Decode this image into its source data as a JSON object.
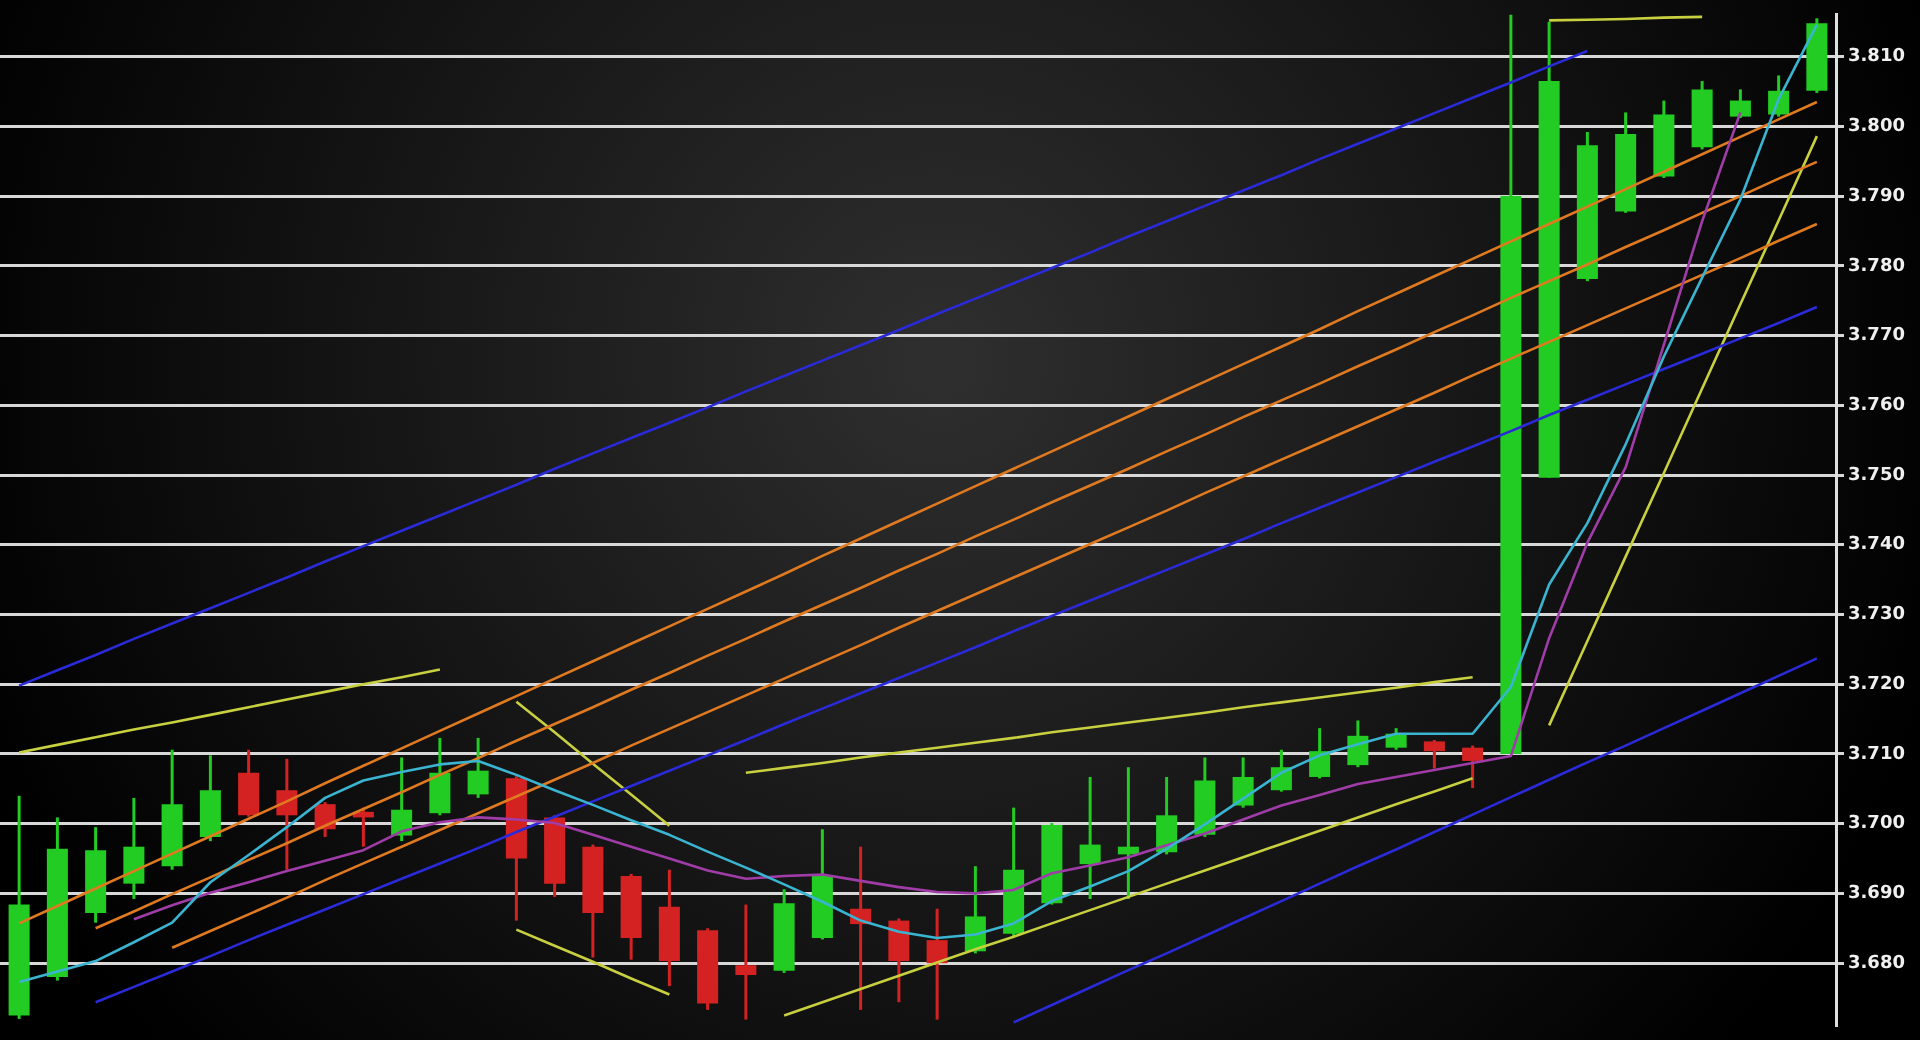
{
  "chart_data": {
    "type": "candlestick",
    "categories": [
      null,
      null,
      null,
      null,
      null,
      null,
      null,
      null,
      null,
      null,
      null,
      null,
      null,
      null,
      null,
      null,
      null,
      null,
      null,
      null,
      null,
      null,
      null,
      null,
      null,
      null,
      null,
      null,
      null,
      null,
      null,
      null,
      null,
      null,
      null,
      null,
      null,
      null,
      null,
      null,
      null,
      null,
      null,
      null,
      null,
      null,
      null,
      null
    ],
    "ohlc": [
      [
        3.6725,
        3.704,
        3.672,
        3.6884
      ],
      [
        3.678,
        3.7009,
        3.6775,
        3.6964
      ],
      [
        3.6872,
        3.6995,
        3.6858,
        3.6962
      ],
      [
        3.6914,
        3.7037,
        3.6892,
        3.6967
      ],
      [
        3.6939,
        3.7106,
        3.6934,
        3.7028
      ],
      [
        3.6981,
        3.7098,
        3.6975,
        3.7048
      ],
      [
        3.7073,
        3.7106,
        3.701,
        3.7012
      ],
      [
        3.7048,
        3.7093,
        3.6934,
        3.7012
      ],
      [
        3.7028,
        3.7031,
        3.6981,
        3.6992
      ],
      [
        3.7017,
        3.7023,
        3.6967,
        3.7009
      ],
      [
        3.6983,
        3.7095,
        3.6975,
        3.702
      ],
      [
        3.7015,
        3.7123,
        3.7012,
        3.7073
      ],
      [
        3.7042,
        3.7123,
        3.7037,
        3.7076
      ],
      [
        3.7065,
        3.7068,
        3.6861,
        3.695
      ],
      [
        3.7009,
        3.7012,
        3.6895,
        3.6914
      ],
      [
        3.6967,
        3.697,
        3.6808,
        3.6872
      ],
      [
        3.6925,
        3.6928,
        3.6805,
        3.6836
      ],
      [
        3.6881,
        3.6934,
        3.6767,
        3.6803
      ],
      [
        3.6847,
        3.685,
        3.6733,
        3.6742
      ],
      [
        3.6797,
        3.6884,
        3.6719,
        3.6783
      ],
      [
        3.6789,
        3.6906,
        3.6786,
        3.6886
      ],
      [
        3.6836,
        3.6992,
        3.6834,
        3.6925
      ],
      [
        3.6878,
        3.6967,
        3.6733,
        3.6856
      ],
      [
        3.6861,
        3.6864,
        3.6744,
        3.6803
      ],
      [
        3.6833,
        3.6878,
        3.6719,
        3.68
      ],
      [
        3.6817,
        3.6939,
        3.6814,
        3.6867
      ],
      [
        3.6842,
        3.7023,
        3.6839,
        3.6934
      ],
      [
        3.6886,
        3.7001,
        3.6884,
        3.6998
      ],
      [
        3.6942,
        3.7067,
        3.6892,
        3.697
      ],
      [
        3.6956,
        3.7081,
        3.6892,
        3.6967
      ],
      [
        3.6959,
        3.7067,
        3.6956,
        3.7012
      ],
      [
        3.6984,
        3.7095,
        3.6981,
        3.7062
      ],
      [
        3.7026,
        3.7095,
        3.7023,
        3.7067
      ],
      [
        3.7048,
        3.7106,
        3.7046,
        3.7081
      ],
      [
        3.7067,
        3.7137,
        3.7065,
        3.7104
      ],
      [
        3.7084,
        3.7148,
        3.7081,
        3.7126
      ],
      [
        3.7109,
        3.7137,
        3.7106,
        3.7129
      ],
      [
        3.7118,
        3.712,
        3.7079,
        3.7104
      ],
      [
        3.7109,
        3.7112,
        3.7051,
        3.709
      ],
      [
        3.71,
        3.816,
        3.71,
        3.79
      ],
      [
        3.7496,
        3.815,
        3.7496,
        3.8065
      ],
      [
        3.7781,
        3.7992,
        3.7778,
        3.7973
      ],
      [
        3.7878,
        3.802,
        3.7876,
        3.7989
      ],
      [
        3.7928,
        3.8037,
        3.7926,
        3.8017
      ],
      [
        3.797,
        3.8065,
        3.7967,
        3.8053
      ],
      [
        3.8014,
        3.8053,
        3.8012,
        3.8037
      ],
      [
        3.8017,
        3.8073,
        3.8014,
        3.8051
      ],
      [
        3.8051,
        3.8155,
        3.8048,
        3.8148
      ]
    ],
    "colors": [
      "#22cc22",
      "#22cc22",
      "#22cc22",
      "#22cc22",
      "#22cc22",
      "#22cc22",
      "#d42222",
      "#d42222",
      "#d42222",
      "#d42222",
      "#22cc22",
      "#22cc22",
      "#22cc22",
      "#d42222",
      "#d42222",
      "#d42222",
      "#d42222",
      "#d42222",
      "#d42222",
      "#d42222",
      "#22cc22",
      "#22cc22",
      "#d42222",
      "#d42222",
      "#d42222",
      "#22cc22",
      "#22cc22",
      "#22cc22",
      "#22cc22",
      "#22cc22",
      "#22cc22",
      "#22cc22",
      "#22cc22",
      "#22cc22",
      "#22cc22",
      "#22cc22",
      "#22cc22",
      "#d42222",
      "#d42222",
      "#22cc22",
      "#22cc22",
      "#22cc22",
      "#22cc22",
      "#22cc22",
      "#22cc22",
      "#22cc22",
      "#22cc22",
      "#22cc22"
    ],
    "series": [
      {
        "type": "line",
        "color": "#3ab4d0",
        "values": [
          3.6773,
          3.6788,
          3.6803,
          3.683,
          3.6858,
          3.6916,
          3.6955,
          3.6995,
          3.7037,
          3.7062,
          3.7074,
          3.7085,
          3.709,
          3.707,
          3.7048,
          3.7027,
          3.7005,
          3.6984,
          3.696,
          3.6937,
          3.6913,
          3.6888,
          3.6861,
          3.6845,
          3.6836,
          3.6841,
          3.6857,
          3.6889,
          3.691,
          3.6932,
          3.6964,
          3.6999,
          3.7036,
          3.7073,
          3.7098,
          3.7114,
          3.7129,
          3.7129,
          3.7129,
          3.7196,
          3.7343,
          3.7431,
          3.7544,
          3.767,
          3.7783,
          3.7895,
          3.8039,
          3.8146
        ]
      },
      {
        "type": "line",
        "color": "#a03ca8",
        "values": [
          null,
          null,
          null,
          3.6863,
          3.6883,
          3.6901,
          3.6916,
          3.6932,
          3.6947,
          3.6962,
          3.6989,
          3.7002,
          3.7009,
          3.7006,
          3.7001,
          3.6984,
          3.6967,
          3.695,
          3.6933,
          3.6921,
          3.6925,
          3.6927,
          3.6918,
          3.6909,
          3.6902,
          3.69,
          3.6905,
          3.6929,
          3.694,
          3.6952,
          3.6969,
          3.6986,
          3.7006,
          3.7026,
          3.7041,
          3.7057,
          3.7067,
          3.7077,
          3.7087,
          3.7097,
          3.7266,
          3.7403,
          3.7511,
          3.7687,
          3.7864,
          3.802,
          null,
          null
        ]
      },
      {
        "type": "line",
        "color": "#2a2ad8",
        "values": [
          3.7198,
          3.722,
          3.7242,
          3.7265,
          3.7287,
          3.7309,
          3.7331,
          3.7353,
          3.7376,
          3.7398,
          3.742,
          3.7442,
          3.7464,
          3.7486,
          3.7509,
          3.7531,
          3.7553,
          3.7575,
          3.7597,
          3.762,
          3.7642,
          3.7664,
          3.7686,
          3.7708,
          3.7731,
          3.7753,
          3.7775,
          3.7797,
          3.7819,
          3.7842,
          3.7864,
          3.7886,
          3.7908,
          3.793,
          3.7953,
          3.7975,
          3.7997,
          3.8019,
          3.8041,
          3.8063,
          3.8086,
          3.8108,
          null,
          null,
          null,
          null,
          null,
          null
        ]
      },
      {
        "type": "line",
        "color": "#2a2ad8",
        "values": [
          null,
          null,
          3.6744,
          3.6766,
          3.6788,
          3.681,
          3.6833,
          3.6855,
          3.6877,
          3.6899,
          3.6921,
          3.6943,
          3.6965,
          3.6988,
          3.701,
          3.7032,
          3.7054,
          3.7076,
          3.7098,
          3.712,
          3.7143,
          3.7165,
          3.7187,
          3.7209,
          3.7231,
          3.7253,
          3.7276,
          3.7298,
          3.732,
          3.7342,
          3.7364,
          3.7386,
          3.7408,
          3.7431,
          3.7453,
          3.7475,
          3.7497,
          3.7519,
          3.7541,
          3.7563,
          3.7586,
          3.7608,
          3.763,
          3.7652,
          3.7674,
          3.7696,
          3.7718,
          3.7741
        ]
      },
      {
        "type": "line",
        "color": "#2a2ad8",
        "values": [
          null,
          null,
          null,
          null,
          null,
          null,
          null,
          null,
          null,
          null,
          null,
          null,
          null,
          null,
          null,
          null,
          null,
          null,
          null,
          null,
          null,
          null,
          null,
          null,
          null,
          null,
          3.6715,
          3.674,
          3.6765,
          3.679,
          3.6814,
          3.6839,
          3.6864,
          3.6889,
          3.6914,
          3.6939,
          3.6963,
          3.6988,
          3.7013,
          3.7038,
          3.7063,
          3.7088,
          3.7112,
          3.7137,
          3.7162,
          3.7187,
          3.7212,
          3.7237
        ]
      },
      {
        "type": "line",
        "color": "#e07a20",
        "values": [
          3.6857,
          3.6882,
          3.6907,
          3.6932,
          3.6957,
          3.6982,
          3.7007,
          3.7032,
          3.7058,
          3.7083,
          3.7108,
          3.7133,
          3.7158,
          3.7183,
          3.7208,
          3.7233,
          3.7258,
          3.7283,
          3.7308,
          3.7333,
          3.7358,
          3.7384,
          3.7409,
          3.7434,
          3.7459,
          3.7484,
          3.7509,
          3.7534,
          3.7559,
          3.7584,
          3.7609,
          3.7634,
          3.7659,
          3.7684,
          3.7709,
          3.7735,
          3.776,
          3.7785,
          3.781,
          3.7835,
          3.786,
          3.7885,
          3.791,
          3.7935,
          3.796,
          3.7985,
          3.801,
          3.8035
        ]
      },
      {
        "type": "line",
        "color": "#e07a20",
        "values": [
          null,
          null,
          3.685,
          3.6874,
          3.6899,
          3.6923,
          3.6948,
          3.6972,
          3.6997,
          3.7021,
          3.7045,
          3.707,
          3.7094,
          3.7119,
          3.7143,
          3.7167,
          3.7192,
          3.7216,
          3.7241,
          3.7265,
          3.729,
          3.7314,
          3.7338,
          3.7363,
          3.7387,
          3.7412,
          3.7436,
          3.7461,
          3.7485,
          3.7509,
          3.7534,
          3.7558,
          3.7583,
          3.7607,
          3.7631,
          3.7656,
          3.768,
          3.7705,
          3.7729,
          3.7754,
          3.7778,
          3.7802,
          3.7827,
          3.7851,
          3.7876,
          3.79,
          3.7925,
          3.7949
        ]
      },
      {
        "type": "line",
        "color": "#e07a20",
        "values": [
          null,
          null,
          null,
          null,
          3.6822,
          3.6846,
          3.687,
          3.6894,
          3.6919,
          3.6943,
          3.6967,
          3.6991,
          3.7015,
          3.7039,
          3.7063,
          3.7087,
          3.7112,
          3.7136,
          3.716,
          3.7184,
          3.7208,
          3.7232,
          3.7256,
          3.7281,
          3.7305,
          3.7329,
          3.7353,
          3.7377,
          3.7401,
          3.7425,
          3.7449,
          3.7474,
          3.7498,
          3.7522,
          3.7546,
          3.757,
          3.7594,
          3.7618,
          3.7643,
          3.7667,
          3.7691,
          3.7715,
          3.7739,
          3.7763,
          3.7787,
          3.7811,
          3.7836,
          3.786
        ]
      },
      {
        "type": "line",
        "color": "#c8d040",
        "values": [
          3.7102,
          3.7113,
          3.7124,
          3.7135,
          3.7145,
          3.7156,
          3.7167,
          3.7178,
          3.7189,
          3.72,
          3.721,
          3.7221,
          null,
          null,
          null,
          null,
          null,
          null,
          null,
          null,
          null,
          null,
          null,
          null,
          null,
          null,
          null,
          null,
          null,
          null,
          null,
          null,
          null,
          null,
          null,
          null,
          null,
          null,
          null,
          null,
          null,
          null,
          null,
          null,
          null,
          null,
          null,
          null
        ]
      },
      {
        "type": "line",
        "color": "#c8d040",
        "values": [
          null,
          null,
          null,
          null,
          null,
          null,
          null,
          null,
          null,
          null,
          null,
          null,
          null,
          3.7175,
          3.7131,
          3.7086,
          3.7042,
          3.6997,
          null,
          null,
          null,
          null,
          null,
          null,
          null,
          null,
          null,
          null,
          null,
          null,
          null,
          null,
          null,
          null,
          null,
          null,
          null,
          null,
          null,
          null,
          null,
          null,
          null,
          null,
          null,
          null,
          null,
          null
        ]
      },
      {
        "type": "line",
        "color": "#c8d040",
        "values": [
          null,
          null,
          null,
          null,
          null,
          null,
          null,
          null,
          null,
          null,
          null,
          null,
          null,
          3.6848,
          3.6825,
          3.6802,
          3.6778,
          3.6755,
          null,
          null,
          null,
          null,
          null,
          null,
          null,
          null,
          null,
          null,
          null,
          null,
          null,
          null,
          null,
          null,
          null,
          null,
          null,
          null,
          null,
          null,
          null,
          null,
          null,
          null,
          null,
          null,
          null,
          null
        ]
      },
      {
        "type": "line",
        "color": "#c8d040",
        "values": [
          null,
          null,
          null,
          null,
          null,
          null,
          null,
          null,
          null,
          null,
          null,
          null,
          null,
          null,
          null,
          null,
          null,
          null,
          null,
          3.7073,
          3.708,
          3.7087,
          3.7095,
          3.7102,
          3.7109,
          3.7116,
          3.7123,
          3.7131,
          3.7138,
          3.7145,
          3.7152,
          3.7159,
          3.7167,
          3.7174,
          3.7181,
          3.7188,
          3.7195,
          3.7203,
          3.721,
          null,
          null,
          null,
          null,
          null,
          null,
          null,
          null,
          null
        ]
      },
      {
        "type": "line",
        "color": "#c8d040",
        "values": [
          null,
          null,
          null,
          null,
          null,
          null,
          null,
          null,
          null,
          null,
          null,
          null,
          null,
          null,
          null,
          null,
          null,
          null,
          null,
          null,
          3.6725,
          3.6744,
          3.6763,
          3.6782,
          3.6801,
          3.682,
          3.6838,
          3.6857,
          3.6876,
          3.6895,
          3.6914,
          3.6933,
          3.6952,
          3.6971,
          3.699,
          3.7009,
          3.7028,
          3.7046,
          3.7065,
          null,
          null,
          null,
          null,
          null,
          null,
          null,
          null,
          null
        ]
      },
      {
        "type": "line",
        "color": "#c8d040",
        "values": [
          null,
          null,
          null,
          null,
          null,
          null,
          null,
          null,
          null,
          null,
          null,
          null,
          null,
          null,
          null,
          null,
          null,
          null,
          null,
          null,
          null,
          null,
          null,
          null,
          null,
          null,
          null,
          null,
          null,
          null,
          null,
          null,
          null,
          null,
          null,
          null,
          null,
          null,
          null,
          null,
          3.7141,
          3.7262,
          3.7383,
          3.7503,
          3.7624,
          3.7745,
          3.7865,
          3.7986
        ]
      },
      {
        "type": "line",
        "color": "#c8d040",
        "values": [
          null,
          null,
          null,
          null,
          null,
          null,
          null,
          null,
          null,
          null,
          null,
          null,
          null,
          null,
          null,
          null,
          null,
          null,
          null,
          null,
          null,
          null,
          null,
          null,
          null,
          null,
          null,
          null,
          null,
          null,
          null,
          null,
          null,
          null,
          null,
          null,
          null,
          null,
          null,
          null,
          3.8152,
          3.8153,
          3.8154,
          3.8156,
          3.8157,
          null,
          null,
          null
        ]
      }
    ],
    "ylim": [
      3.6711,
      3.816
    ],
    "yticks": [
      {
        "value": 3.68,
        "label": "3.680"
      },
      {
        "value": 3.69,
        "label": "3.690"
      },
      {
        "value": 3.7,
        "label": "3.700"
      },
      {
        "value": 3.71,
        "label": "3.710"
      },
      {
        "value": 3.72,
        "label": "3.720"
      },
      {
        "value": 3.73,
        "label": "3.730"
      },
      {
        "value": 3.74,
        "label": "3.740"
      },
      {
        "value": 3.75,
        "label": "3.750"
      },
      {
        "value": 3.76,
        "label": "3.760"
      },
      {
        "value": 3.77,
        "label": "3.770"
      },
      {
        "value": 3.78,
        "label": "3.780"
      },
      {
        "value": 3.79,
        "label": "3.790"
      },
      {
        "value": 3.8,
        "label": "3.800"
      },
      {
        "value": 3.81,
        "label": "3.810"
      }
    ],
    "grid": "y",
    "tick_labels": "y"
  }
}
